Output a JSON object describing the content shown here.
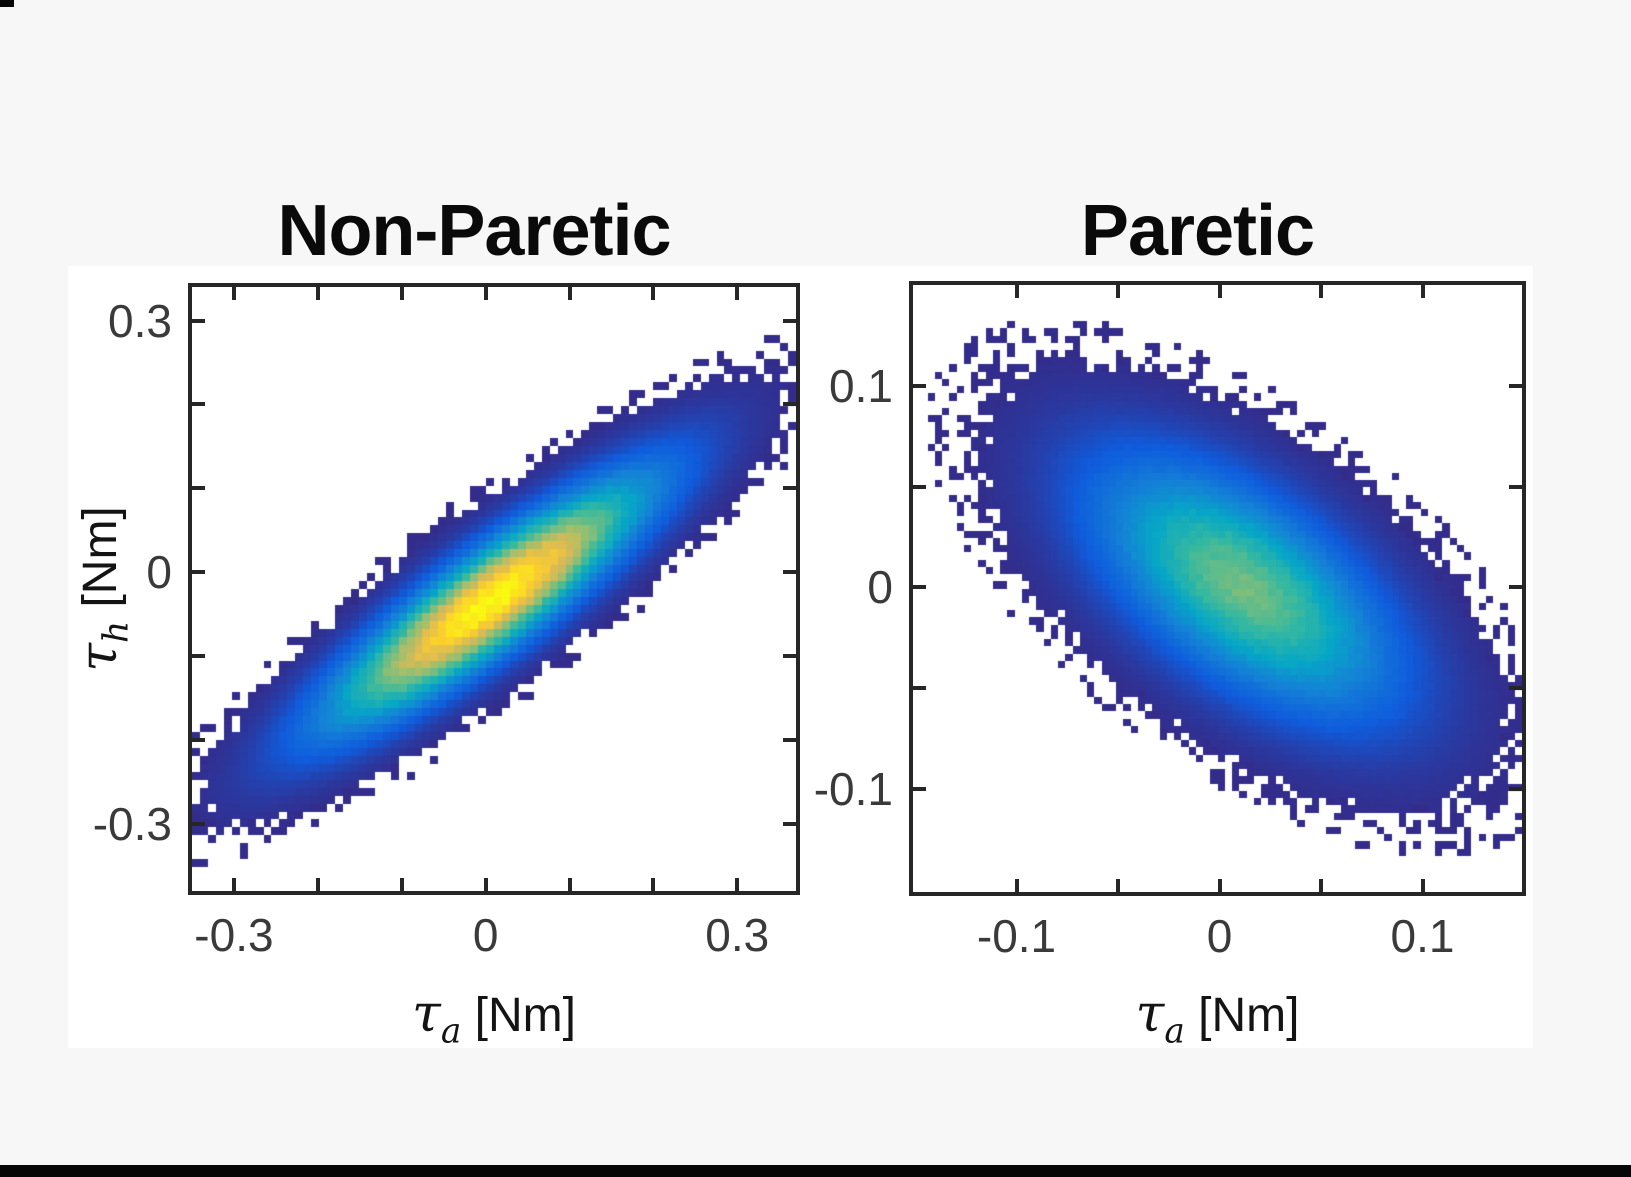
{
  "page": {
    "background_color": "#f7f7f7",
    "panel_color": "#ffffff",
    "bottom_bar_color": "#060606",
    "axis_color": "#262626",
    "tick_label_color": "#3a3a3a"
  },
  "colormaps": {
    "parula": [
      "#352a87",
      "#0f5cdd",
      "#1481d6",
      "#06a7c6",
      "#38b99e",
      "#92bf73",
      "#d9ba56",
      "#fcce2e",
      "#f9fb0e"
    ]
  },
  "chart_data": [
    {
      "type": "heatmap",
      "title": "Non-Paretic",
      "xlabel": "τa [Nm]",
      "ylabel": "τh [Nm]",
      "xlabel_parts": {
        "tau": "τ",
        "sub": "a",
        "unit": " [Nm]"
      },
      "ylabel_parts": {
        "tau": "τ",
        "sub": "h",
        "unit": " [Nm]"
      },
      "xlim": [
        -0.35,
        0.37
      ],
      "ylim": [
        -0.38,
        0.34
      ],
      "xticks": [
        -0.3,
        -0.2,
        -0.1,
        0,
        0.1,
        0.2,
        0.3
      ],
      "xtick_labels": [
        "-0.3",
        "",
        "",
        "0",
        "",
        "",
        "0.3"
      ],
      "yticks": [
        -0.3,
        -0.2,
        -0.1,
        0,
        0.1,
        0.2,
        0.3
      ],
      "ytick_labels": [
        "-0.3",
        "",
        "",
        "0",
        "",
        "",
        "0.3"
      ],
      "grid": false,
      "legend": null,
      "bins": [
        76,
        76
      ],
      "colormap": "parula",
      "distribution": {
        "kind": "bivariate-gaussian-density",
        "mean": [
          0.005,
          -0.035
        ],
        "sigma": [
          0.12,
          0.092
        ],
        "rho": 0.885,
        "peak_colormap_value": 1.0,
        "visible_threshold": 0.013
      },
      "seed": 7
    },
    {
      "type": "heatmap",
      "title": "Paretic",
      "xlabel": "τa [Nm]",
      "ylabel": null,
      "xlabel_parts": {
        "tau": "τ",
        "sub": "a",
        "unit": " [Nm]"
      },
      "xlim": [
        -0.151,
        0.149
      ],
      "ylim": [
        -0.151,
        0.15
      ],
      "xticks": [
        -0.1,
        -0.05,
        0,
        0.05,
        0.1
      ],
      "xtick_labels": [
        "-0.1",
        "",
        "0",
        "",
        "0.1"
      ],
      "yticks": [
        -0.1,
        -0.05,
        0,
        0.05,
        0.1
      ],
      "ytick_labels": [
        "-0.1",
        "",
        "0",
        "",
        "0.1"
      ],
      "grid": false,
      "legend": null,
      "bins": [
        84,
        84
      ],
      "colormap": "parula",
      "distribution": {
        "kind": "bivariate-gaussian-density",
        "mean": [
          0.012,
          0.0
        ],
        "sigma": [
          0.047,
          0.04
        ],
        "rho": -0.6,
        "peak_colormap_value": 0.58,
        "visible_threshold": 0.02
      },
      "seed": 11
    }
  ]
}
